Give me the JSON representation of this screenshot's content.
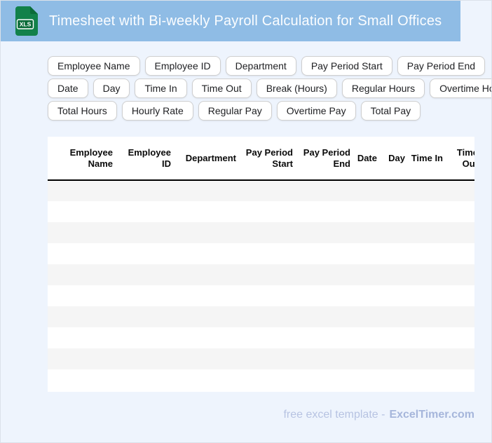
{
  "header": {
    "title": "Timesheet with Bi-weekly Payroll Calculation for Small Offices",
    "file_badge": "XLS"
  },
  "chips": {
    "rows": [
      [
        "Employee Name",
        "Employee ID",
        "Department",
        "Pay Period Start",
        "Pay Period End"
      ],
      [
        "Date",
        "Day",
        "Time In",
        "Time Out",
        "Break (Hours)",
        "Regular Hours",
        "Overtime Hours"
      ],
      [
        "Total Hours",
        "Hourly Rate",
        "Regular Pay",
        "Overtime Pay",
        "Total Pay"
      ]
    ]
  },
  "table": {
    "columns": [
      {
        "label": "Employee Name"
      },
      {
        "label": "Employee ID"
      },
      {
        "label": "Department"
      },
      {
        "label": "Pay Period Start"
      },
      {
        "label": "Pay Period End"
      },
      {
        "label": "Date"
      },
      {
        "label": "Day"
      },
      {
        "label": "Time In"
      },
      {
        "label": "Time Out"
      }
    ],
    "empty_row_count": 10
  },
  "footer": {
    "prefix": "free excel template -",
    "brand": "ExcelTimer.com"
  },
  "colors": {
    "banner_blue": "#8FBCE5",
    "page_background": "#EEF4FD",
    "row_stripe": "#F5F5F5",
    "icon_green": "#12814A",
    "icon_dark_green": "#0B6B39",
    "footer_text": "#B7C3E2",
    "footer_brand": "#A6B6DB"
  }
}
